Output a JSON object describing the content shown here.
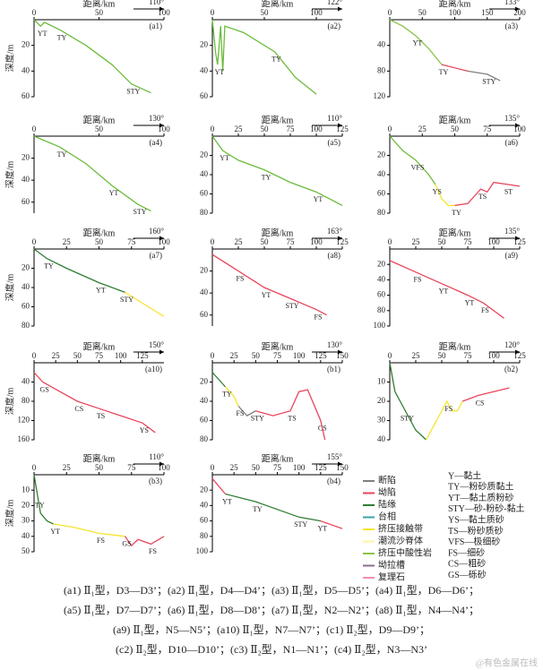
{
  "chart_data": [
    {
      "type": "line",
      "label": "(a1)",
      "direction": "110°",
      "xlabel": "距离/km",
      "ylabel": "深度/m",
      "invert_y": true,
      "xlim": [
        0,
        100
      ],
      "xticks": [
        0,
        50,
        100
      ],
      "ylim": [
        0,
        60
      ],
      "yticks": [
        20,
        40,
        60
      ],
      "series": [
        {
          "color": "#6cbb3c",
          "x": [
            0,
            5,
            8,
            12,
            20,
            40,
            60,
            75,
            90
          ],
          "values": [
            0,
            5,
            2,
            4,
            8,
            20,
            35,
            50,
            57
          ]
        }
      ],
      "annotations": [
        "YT",
        "TY",
        "STY"
      ]
    },
    {
      "type": "line",
      "label": "(a2)",
      "direction": "122°",
      "xlabel": "距离/km",
      "invert_y": true,
      "xlim": [
        0,
        125
      ],
      "xticks": [
        0,
        50,
        100
      ],
      "ylim": [
        0,
        60
      ],
      "yticks": [
        20,
        40,
        60
      ],
      "series": [
        {
          "color": "#6cbb3c",
          "x": [
            0,
            3,
            5,
            8,
            10,
            12,
            30,
            60,
            80,
            100
          ],
          "values": [
            0,
            25,
            35,
            5,
            40,
            5,
            10,
            25,
            45,
            58
          ]
        }
      ],
      "annotations": [
        "YT",
        "TY"
      ]
    },
    {
      "type": "line",
      "label": "(a3)",
      "direction": "133°",
      "xlabel": "距离/km",
      "invert_y": true,
      "xlim": [
        0,
        200
      ],
      "xticks": [
        0,
        50,
        100,
        150,
        200
      ],
      "ylim": [
        0,
        120
      ],
      "yticks": [
        40,
        80,
        120
      ],
      "series": [
        {
          "color": "#8bc34a",
          "x": [
            0,
            20,
            40,
            60,
            80
          ],
          "values": [
            0,
            10,
            25,
            45,
            70
          ]
        },
        {
          "color": "#e8455b",
          "x": [
            80,
            120
          ],
          "values": [
            70,
            80
          ]
        },
        {
          "color": "#808080",
          "x": [
            120,
            150,
            170
          ],
          "values": [
            80,
            85,
            95
          ]
        }
      ],
      "annotations": [
        "YT",
        "TY",
        "STY"
      ]
    },
    {
      "type": "line",
      "label": "(a4)",
      "direction": "130°",
      "xlabel": "距离/km",
      "ylabel": "深度/m",
      "invert_y": true,
      "xlim": [
        0,
        100
      ],
      "xticks": [
        0,
        50,
        100
      ],
      "ylim": [
        0,
        70
      ],
      "yticks": [
        20,
        40,
        60
      ],
      "series": [
        {
          "color": "#6cbb3c",
          "x": [
            0,
            20,
            40,
            60,
            80,
            90
          ],
          "values": [
            0,
            10,
            25,
            45,
            62,
            68
          ]
        }
      ],
      "annotations": [
        "TY",
        "YT",
        "STY"
      ]
    },
    {
      "type": "line",
      "label": "(a5)",
      "direction": "110°",
      "xlabel": "距离/km",
      "invert_y": true,
      "xlim": [
        0,
        125
      ],
      "xticks": [
        0,
        25,
        50,
        75,
        100,
        125
      ],
      "ylim": [
        0,
        80
      ],
      "yticks": [
        20,
        40,
        60,
        80
      ],
      "series": [
        {
          "color": "#6cbb3c",
          "x": [
            0,
            10,
            25,
            50,
            75,
            100,
            125
          ],
          "values": [
            0,
            15,
            25,
            35,
            48,
            58,
            72
          ]
        }
      ],
      "annotations": [
        "YT",
        "TY",
        "YT"
      ]
    },
    {
      "type": "line",
      "label": "(a6)",
      "direction": "135°",
      "xlabel": "距离/km",
      "invert_y": true,
      "xlim": [
        0,
        100
      ],
      "xticks": [
        0,
        25,
        50,
        75,
        100
      ],
      "ylim": [
        0,
        80
      ],
      "yticks": [
        20,
        40,
        60,
        80
      ],
      "series": [
        {
          "color": "#6cbb3c",
          "x": [
            0,
            10,
            20,
            30,
            35
          ],
          "values": [
            0,
            15,
            25,
            40,
            50
          ]
        },
        {
          "color": "#f5e52a",
          "x": [
            35,
            40,
            45,
            50
          ],
          "values": [
            50,
            65,
            72,
            72
          ]
        },
        {
          "color": "#e8455b",
          "x": [
            50,
            60,
            70,
            75,
            80,
            90,
            100
          ],
          "values": [
            72,
            70,
            55,
            58,
            48,
            50,
            52
          ]
        }
      ],
      "annotations": [
        "VFS",
        "YS",
        "TY",
        "TS",
        "ST"
      ]
    },
    {
      "type": "line",
      "label": "(a7)",
      "direction": "160°",
      "xlabel": "距离/km",
      "ylabel": "深度/m",
      "invert_y": true,
      "xlim": [
        0,
        100
      ],
      "xticks": [
        0,
        25,
        50,
        75,
        100
      ],
      "ylim": [
        0,
        80
      ],
      "yticks": [
        20,
        40,
        60,
        80
      ],
      "series": [
        {
          "color": "#2e7d32",
          "x": [
            0,
            10,
            25,
            50,
            70
          ],
          "values": [
            0,
            10,
            20,
            35,
            45
          ]
        },
        {
          "color": "#f5e52a",
          "x": [
            70,
            100
          ],
          "values": [
            45,
            70
          ]
        }
      ],
      "annotations": [
        "TY",
        "YT",
        "STY"
      ]
    },
    {
      "type": "line",
      "label": "(a8)",
      "direction": "163°",
      "xlabel": "距离/km",
      "invert_y": true,
      "xlim": [
        0,
        125
      ],
      "xticks": [
        0,
        25,
        50,
        75,
        100,
        125
      ],
      "ylim": [
        0,
        70
      ],
      "yticks": [
        20,
        40,
        60
      ],
      "series": [
        {
          "color": "#e8455b",
          "x": [
            0,
            25,
            50,
            75,
            100,
            110
          ],
          "values": [
            5,
            20,
            35,
            45,
            55,
            60
          ]
        }
      ],
      "annotations": [
        "FS",
        "YT",
        "STY",
        "FS"
      ]
    },
    {
      "type": "line",
      "label": "(a9)",
      "direction": "135°",
      "xlabel": "距离/km",
      "invert_y": true,
      "xlim": [
        0,
        125
      ],
      "xticks": [
        0,
        25,
        50,
        75,
        100,
        125
      ],
      "ylim": [
        0,
        100
      ],
      "yticks": [
        20,
        40,
        60,
        80,
        100
      ],
      "series": [
        {
          "color": "#e8455b",
          "x": [
            0,
            25,
            50,
            75,
            90,
            110
          ],
          "values": [
            15,
            30,
            45,
            60,
            70,
            90
          ]
        }
      ],
      "annotations": [
        "FS",
        "YT",
        "YT",
        "FS"
      ]
    },
    {
      "type": "line",
      "label": "(a10)",
      "direction": "150°",
      "xlabel": "距离/km",
      "ylabel": "深度/m",
      "invert_y": true,
      "xlim": [
        0,
        150
      ],
      "xticks": [
        0,
        25,
        50,
        75,
        100,
        125
      ],
      "ylim": [
        0,
        160
      ],
      "yticks": [
        40,
        80,
        120,
        160
      ],
      "series": [
        {
          "color": "#e8455b",
          "x": [
            0,
            10,
            25,
            50,
            75,
            100,
            125,
            140
          ],
          "values": [
            20,
            40,
            55,
            80,
            95,
            110,
            125,
            145
          ]
        }
      ],
      "annotations": [
        "GS",
        "CS",
        "TS",
        "YS"
      ]
    },
    {
      "type": "line",
      "label": "(b1)",
      "direction": "130°",
      "xlabel": "距离/km",
      "invert_y": true,
      "xlim": [
        0,
        150
      ],
      "xticks": [
        0,
        25,
        50,
        75,
        100,
        125,
        150
      ],
      "ylim": [
        0,
        80
      ],
      "yticks": [
        20,
        40,
        60,
        80
      ],
      "series": [
        {
          "color": "#2e7d32",
          "x": [
            0,
            10,
            15
          ],
          "values": [
            10,
            20,
            25
          ]
        },
        {
          "color": "#f5e52a",
          "x": [
            15,
            25,
            30
          ],
          "values": [
            25,
            35,
            45
          ]
        },
        {
          "color": "#808080",
          "x": [
            30,
            40,
            50
          ],
          "values": [
            45,
            55,
            50
          ]
        },
        {
          "color": "#e8455b",
          "x": [
            50,
            70,
            90,
            100,
            110,
            125,
            130
          ],
          "values": [
            50,
            55,
            50,
            30,
            28,
            60,
            80
          ]
        }
      ],
      "annotations": [
        "TY",
        "FS",
        "STY",
        "TS",
        "CS"
      ]
    },
    {
      "type": "line",
      "label": "(b2)",
      "direction": "120°",
      "xlabel": "距离/km",
      "invert_y": true,
      "xlim": [
        0,
        125
      ],
      "xticks": [
        0,
        25,
        50,
        75,
        100,
        125
      ],
      "ylim": [
        0,
        40
      ],
      "yticks": [
        10,
        20,
        30,
        40
      ],
      "series": [
        {
          "color": "#2e7d32",
          "x": [
            0,
            5,
            15,
            25,
            35
          ],
          "values": [
            0,
            15,
            25,
            35,
            40
          ]
        },
        {
          "color": "#f5e52a",
          "x": [
            35,
            45,
            55,
            60,
            65,
            70
          ],
          "values": [
            40,
            30,
            20,
            25,
            25,
            20
          ]
        },
        {
          "color": "#e8455b",
          "x": [
            70,
            85,
            100,
            115
          ],
          "values": [
            20,
            17,
            15,
            13
          ]
        }
      ],
      "annotations": [
        "STY",
        "FS",
        "CS"
      ]
    },
    {
      "type": "line",
      "label": "(b3)",
      "direction": "110°",
      "xlabel": "距离/km",
      "ylabel": "深度/m",
      "invert_y": true,
      "xlim": [
        0,
        100
      ],
      "xticks": [
        0,
        25,
        50,
        75,
        100
      ],
      "ylim": [
        0,
        50
      ],
      "yticks": [
        10,
        20,
        30,
        40,
        50
      ],
      "series": [
        {
          "color": "#2e7d32",
          "x": [
            0,
            3,
            5,
            10,
            15
          ],
          "values": [
            0,
            15,
            25,
            30,
            32
          ]
        },
        {
          "color": "#f5e52a",
          "x": [
            15,
            30,
            50,
            70
          ],
          "values": [
            32,
            34,
            38,
            40
          ]
        },
        {
          "color": "#e8455b",
          "x": [
            70,
            75,
            80,
            90,
            100
          ],
          "values": [
            40,
            46,
            42,
            45,
            40
          ]
        }
      ],
      "annotations": [
        "TY",
        "YT",
        "FS",
        "GS",
        "FS"
      ]
    },
    {
      "type": "line",
      "label": "(b4)",
      "direction": "155°",
      "xlabel": "距离/km",
      "invert_y": true,
      "xlim": [
        0,
        150
      ],
      "xticks": [
        0,
        25,
        50,
        75,
        100,
        125,
        150
      ],
      "ylim": [
        0,
        100
      ],
      "yticks": [
        20,
        40,
        60,
        80,
        100
      ],
      "series": [
        {
          "color": "#e8455b",
          "x": [
            0,
            15
          ],
          "values": [
            5,
            25
          ]
        },
        {
          "color": "#2e7d32",
          "x": [
            15,
            50,
            75,
            100,
            125
          ],
          "values": [
            25,
            35,
            45,
            55,
            60
          ]
        },
        {
          "color": "#e8455b",
          "x": [
            125,
            150
          ],
          "values": [
            60,
            70
          ]
        }
      ],
      "annotations": [
        "YT",
        "TY",
        "STY",
        "YT"
      ]
    }
  ],
  "legend": {
    "items": [
      {
        "name": "断陷",
        "color": "#808080"
      },
      {
        "name": "坳陷",
        "color": "#e8455b"
      },
      {
        "name": "陆缘",
        "color": "#2e7d32"
      },
      {
        "name": "台相",
        "color": "#3aa3a3"
      },
      {
        "name": "挤压接触带",
        "color": "#f5e52a"
      },
      {
        "name": "潮流沙脊体",
        "color": "#fff59d"
      },
      {
        "name": "挤压中酸性岩",
        "color": "#8bc34a"
      },
      {
        "name": "坳拉槽",
        "color": "#8d6e8d"
      },
      {
        "name": "复理石",
        "color": "#f48fb1"
      }
    ],
    "codes": [
      "Y—黏土",
      "TY—粉砂质黏土",
      "YT—黏土质粉砂",
      "STY—砂-粉砂-黏土",
      "YS—黏土质砂",
      "TS—粉砂质砂",
      "VFS—极细砂",
      "FS—细砂",
      "CS—粗砂",
      "GS—砾砂"
    ]
  },
  "caption": [
    "(a1) Ⅱ₁型，D3—D3’；(a2) Ⅱ₁型，D4—D4’；(a3) Ⅱ₁型，D5—D5’；(a4) Ⅱ₁型，D6—D6’；",
    "(a5) Ⅱ₁型，D7—D7’；(a6) Ⅱ₁型，D8—D8’；(a7) Ⅱ₁型，N2—N2’；(a8) Ⅱ₁型，N4—N4’；",
    "(a9) Ⅱ₁型，N5—N5’；(a10) Ⅱ₁型，N7—N7’；(c1) Ⅱ₂型，D9—D9’；",
    "(c2) Ⅱ₂型，D10—D10’；(c3) Ⅱ₂型，N1—N1’；(c4) Ⅱ₂型，N3—N3’"
  ],
  "watermark": "@有色金属在线"
}
